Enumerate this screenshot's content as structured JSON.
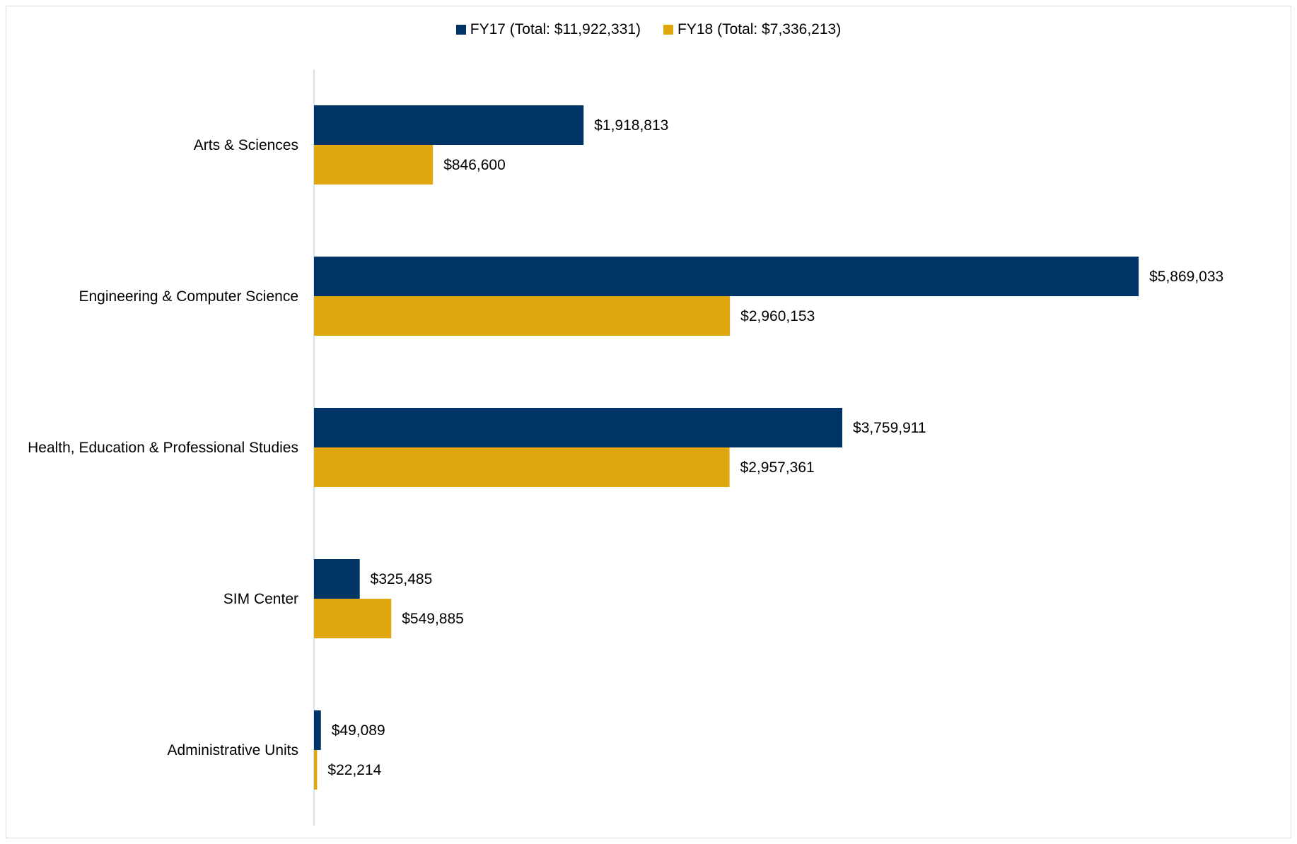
{
  "chart_data": {
    "type": "bar",
    "orientation": "horizontal",
    "categories": [
      "Arts & Sciences",
      "Engineering & Computer Science",
      "Health, Education & Professional Studies",
      "SIM Center",
      "Administrative Units"
    ],
    "series": [
      {
        "name": "FY17 (Total: $11,922,331)",
        "color": "#003366",
        "values": [
          1918813,
          5869033,
          3759911,
          325485,
          49089
        ],
        "labels": [
          "$1,918,813",
          "$5,869,033",
          "$3,759,911",
          "$325,485",
          "$49,089"
        ]
      },
      {
        "name": "FY18 (Total: $7,336,213)",
        "color": "#E0A80E",
        "values": [
          846600,
          2960153,
          2957361,
          549885,
          22214
        ],
        "labels": [
          "$846,600",
          "$2,960,153",
          "$2,957,361",
          "$549,885",
          "$22,214"
        ]
      }
    ],
    "title": "",
    "xlabel": "",
    "ylabel": "",
    "xlim": [
      0,
      6850000
    ],
    "grid": false,
    "legend_position": "top-center"
  },
  "colors": {
    "axis_line": "#c9d8e6",
    "frame_border": "#d4dde8"
  }
}
